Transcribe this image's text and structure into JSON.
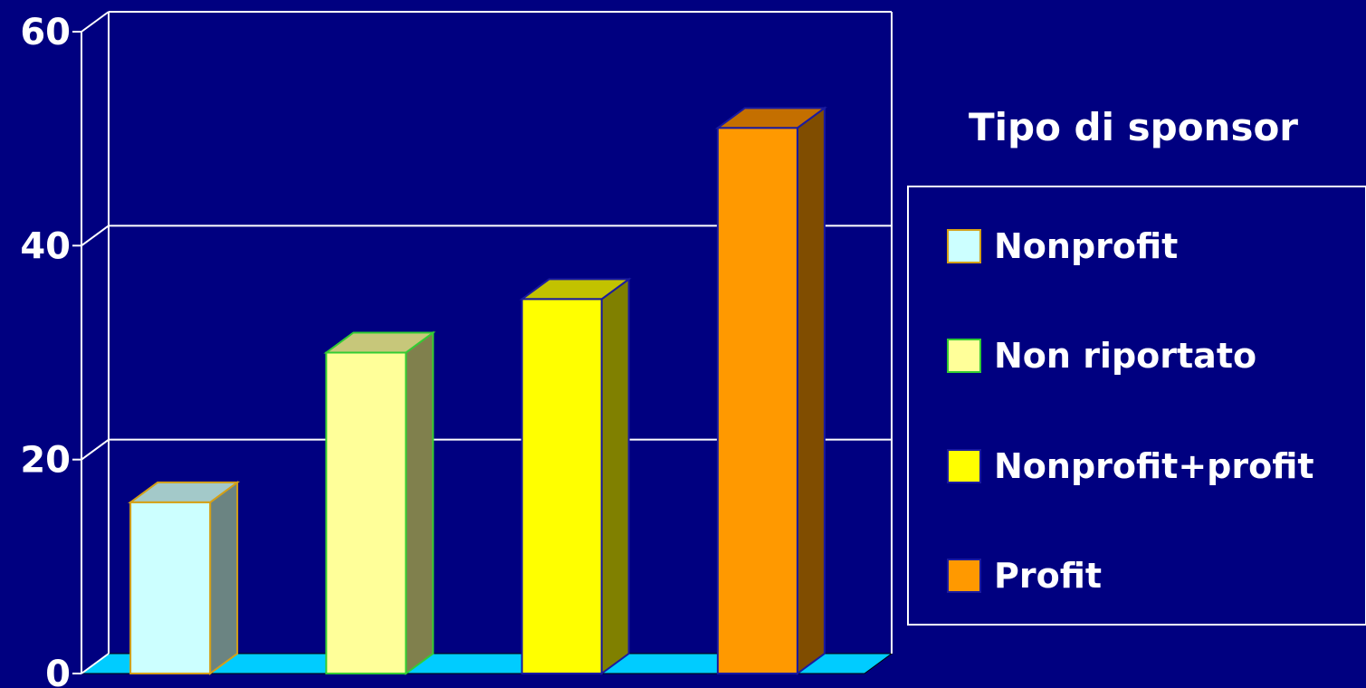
{
  "chart_data": {
    "type": "bar",
    "categories": [
      "Nonprofit",
      "Non riportato",
      "Nonprofit+profit",
      "Profit"
    ],
    "values": [
      16,
      30,
      35,
      51
    ],
    "ylim": [
      0,
      60
    ],
    "yticks": [
      "0",
      "20",
      "40",
      "60"
    ],
    "grid": true,
    "legend": {
      "title": "Tipo di sponsor",
      "placement": "right",
      "items": [
        "Nonprofit",
        "Non riportato",
        "Nonprofit+profit",
        "Profit"
      ]
    },
    "colors": {
      "background": "#000080",
      "floor": "#00ccff",
      "grid": "#ffffff",
      "bars": [
        {
          "front": "#ccffff",
          "side": "#6b8482",
          "top": "#a3c9c9",
          "edge": "#d4a017"
        },
        {
          "front": "#ffff99",
          "side": "#80804d",
          "top": "#c7c77a",
          "edge": "#33cc33"
        },
        {
          "front": "#ffff00",
          "side": "#808000",
          "top": "#c2c200",
          "edge": "#1a1aa0"
        },
        {
          "front": "#ff9900",
          "side": "#804d00",
          "top": "#c46f00",
          "edge": "#1a1aa0"
        }
      ]
    }
  }
}
